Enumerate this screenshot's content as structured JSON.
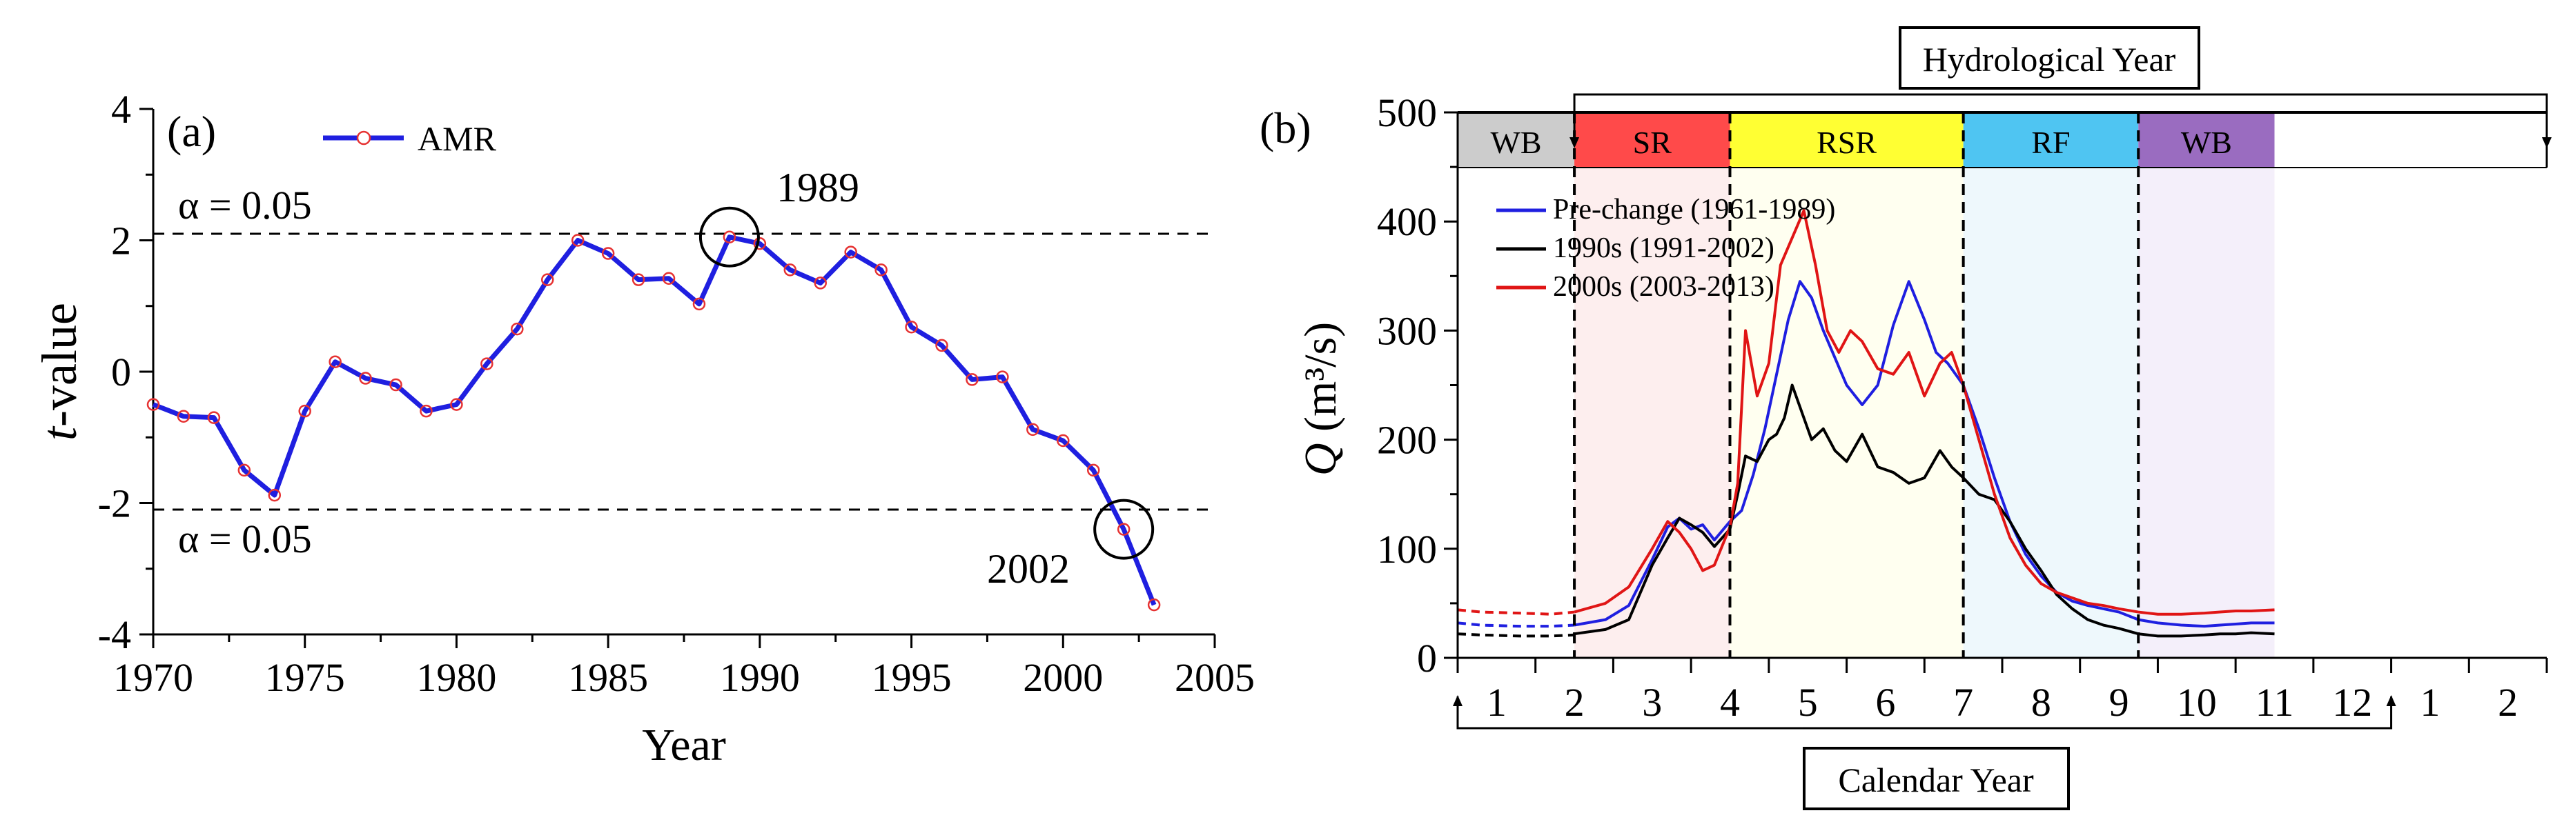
{
  "chart_data": [
    {
      "type": "line",
      "panel_label": "(a)",
      "xlabel": "Year",
      "ylabel_italic": "t",
      "ylabel_rest": "-value",
      "xlim": [
        1970,
        2005
      ],
      "ylim": [
        -4,
        4
      ],
      "xticks": [
        1970,
        1975,
        1980,
        1985,
        1990,
        1995,
        2000,
        2005
      ],
      "yticks": [
        4,
        2,
        0,
        -2,
        -4
      ],
      "legend": "AMR",
      "threshold_upper": 2.1,
      "threshold_lower": -2.1,
      "threshold_label_upper": "α = 0.05",
      "threshold_label_lower": "α = 0.05",
      "annotations": [
        {
          "label": "1989",
          "x": 1989,
          "y": 2.05
        },
        {
          "label": "2002",
          "x": 2002,
          "y": -2.4
        }
      ],
      "series": [
        {
          "name": "AMR",
          "color": "#1f1fe0",
          "marker_color": "#e63232",
          "x": [
            1970,
            1971,
            1972,
            1973,
            1974,
            1975,
            1976,
            1977,
            1978,
            1979,
            1980,
            1981,
            1982,
            1983,
            1984,
            1985,
            1986,
            1987,
            1988,
            1989,
            1990,
            1991,
            1992,
            1993,
            1994,
            1995,
            1996,
            1997,
            1998,
            1999,
            2000,
            2001,
            2002,
            2003
          ],
          "y": [
            -0.5,
            -0.68,
            -0.7,
            -1.5,
            -1.88,
            -0.6,
            0.15,
            -0.1,
            -0.2,
            -0.6,
            -0.5,
            0.12,
            0.65,
            1.4,
            2.0,
            1.8,
            1.4,
            1.42,
            1.03,
            2.05,
            1.95,
            1.55,
            1.35,
            1.82,
            1.55,
            0.68,
            0.4,
            -0.12,
            -0.08,
            -0.88,
            -1.05,
            -1.5,
            -2.4,
            -3.55
          ]
        }
      ]
    },
    {
      "type": "line",
      "panel_label": "(b)",
      "ylabel_italic": "Q",
      "ylabel_rest": " (m³/s)",
      "ylim": [
        0,
        500
      ],
      "yticks": [
        500,
        400,
        300,
        200,
        100,
        0
      ],
      "month_labels": [
        "1",
        "2",
        "3",
        "4",
        "5",
        "6",
        "7",
        "8",
        "9",
        "10",
        "11",
        "12",
        "1",
        "2"
      ],
      "hydrological_label": "Hydrological Year",
      "calendar_label": "Calendar Year",
      "periods": [
        {
          "label": "WB",
          "start": 0,
          "end": 1.5,
          "band_color": "#cccccc",
          "bg_color": "#ffffff",
          "text_color": "#888888"
        },
        {
          "label": "SR",
          "start": 1.5,
          "end": 3.5,
          "band_color": "#ff4a4a",
          "bg_color": "#fdeeee",
          "text_color": "#000000"
        },
        {
          "label": "RSR",
          "start": 3.5,
          "end": 6.5,
          "band_color": "#ffff33",
          "bg_color": "#fffff0",
          "text_color": "#000000"
        },
        {
          "label": "RF",
          "start": 6.5,
          "end": 8.75,
          "band_color": "#4fc5f2",
          "bg_color": "#eef8fc",
          "text_color": "#000000"
        },
        {
          "label": "WB",
          "start": 8.75,
          "end": 10.5,
          "band_color": "#9a6cc0",
          "bg_color": "#f4effa",
          "text_color": "#ffffff"
        }
      ],
      "legend": [
        {
          "name": "Pre-change (1961-1989)",
          "color": "#1f1fe0"
        },
        {
          "name": "1990s (1991-2002)",
          "color": "#000000"
        },
        {
          "name": "2000s (2003-2013)",
          "color": "#e01515"
        }
      ],
      "series": [
        {
          "name": "Pre-change (1961-1989)",
          "color": "#1f1fe0",
          "dashed_x": [
            0.0,
            0.3,
            0.8,
            1.2,
            1.5
          ],
          "dashed_y": [
            32,
            30,
            29,
            29,
            30
          ],
          "x": [
            1.5,
            1.9,
            2.2,
            2.5,
            2.7,
            2.85,
            3.0,
            3.15,
            3.3,
            3.5,
            3.65,
            3.8,
            3.95,
            4.1,
            4.25,
            4.4,
            4.55,
            4.7,
            4.85,
            5.0,
            5.2,
            5.4,
            5.6,
            5.8,
            6.0,
            6.15,
            6.3,
            6.5,
            6.7,
            6.9,
            7.1,
            7.3,
            7.5,
            7.7,
            7.9,
            8.1,
            8.3,
            8.5,
            8.75,
            9.0,
            9.3,
            9.6,
            9.8,
            10.0,
            10.2,
            10.5
          ],
          "y": [
            30,
            35,
            48,
            90,
            120,
            128,
            118,
            122,
            108,
            125,
            135,
            168,
            210,
            260,
            310,
            345,
            330,
            300,
            275,
            250,
            232,
            250,
            305,
            345,
            310,
            280,
            270,
            250,
            210,
            165,
            125,
            95,
            75,
            60,
            52,
            48,
            45,
            42,
            35,
            32,
            30,
            29,
            30,
            31,
            32,
            32
          ]
        },
        {
          "name": "1990s (1991-2002)",
          "color": "#000000",
          "dashed_x": [
            0.0,
            0.3,
            0.8,
            1.2,
            1.5
          ],
          "dashed_y": [
            22,
            21,
            20,
            20,
            21
          ],
          "x": [
            1.5,
            1.9,
            2.2,
            2.5,
            2.7,
            2.85,
            3.0,
            3.15,
            3.3,
            3.5,
            3.6,
            3.7,
            3.85,
            4.0,
            4.1,
            4.2,
            4.3,
            4.4,
            4.55,
            4.7,
            4.85,
            5.0,
            5.2,
            5.4,
            5.6,
            5.8,
            6.0,
            6.2,
            6.35,
            6.5,
            6.7,
            6.9,
            7.1,
            7.3,
            7.5,
            7.7,
            7.9,
            8.1,
            8.3,
            8.5,
            8.75,
            9.0,
            9.3,
            9.6,
            9.8,
            10.0,
            10.2,
            10.5
          ],
          "y": [
            22,
            26,
            35,
            85,
            110,
            128,
            122,
            115,
            102,
            118,
            150,
            185,
            180,
            200,
            205,
            220,
            250,
            230,
            200,
            210,
            190,
            180,
            205,
            175,
            170,
            160,
            165,
            190,
            175,
            165,
            150,
            145,
            125,
            100,
            80,
            58,
            45,
            35,
            30,
            27,
            22,
            20,
            20,
            21,
            22,
            22,
            23,
            22
          ]
        },
        {
          "name": "2000s (2003-2013)",
          "color": "#e01515",
          "dashed_x": [
            0.0,
            0.3,
            0.8,
            1.2,
            1.5
          ],
          "dashed_y": [
            44,
            42,
            41,
            40,
            42
          ],
          "x": [
            1.5,
            1.9,
            2.2,
            2.5,
            2.7,
            2.85,
            3.0,
            3.15,
            3.3,
            3.5,
            3.6,
            3.7,
            3.85,
            4.0,
            4.15,
            4.3,
            4.45,
            4.6,
            4.75,
            4.9,
            5.05,
            5.2,
            5.4,
            5.6,
            5.8,
            6.0,
            6.2,
            6.35,
            6.5,
            6.7,
            6.9,
            7.1,
            7.3,
            7.5,
            7.7,
            7.9,
            8.1,
            8.3,
            8.5,
            8.75,
            9.0,
            9.3,
            9.6,
            9.8,
            10.0,
            10.2,
            10.5
          ],
          "y": [
            42,
            50,
            65,
            100,
            125,
            115,
            100,
            80,
            85,
            120,
            160,
            300,
            240,
            270,
            360,
            385,
            410,
            360,
            300,
            280,
            300,
            290,
            265,
            260,
            280,
            240,
            270,
            280,
            250,
            200,
            150,
            110,
            85,
            68,
            60,
            55,
            50,
            48,
            45,
            42,
            40,
            40,
            41,
            42,
            43,
            43,
            44
          ]
        }
      ]
    }
  ]
}
